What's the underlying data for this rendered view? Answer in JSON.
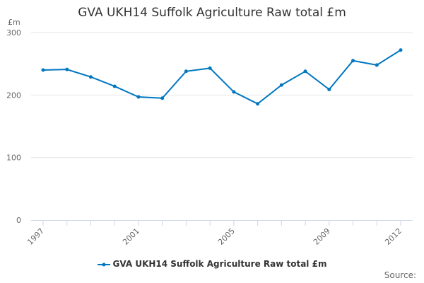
{
  "chart_data": {
    "type": "line",
    "title": "GVA UKH14 Suffolk Agriculture Raw total £m",
    "ylabel": "£m",
    "ylim": [
      0,
      300
    ],
    "yticks": [
      0,
      100,
      200,
      300
    ],
    "xticks": [
      "1997",
      "2001",
      "2005",
      "2009",
      "2012"
    ],
    "x": [
      1997,
      1998,
      1999,
      2000,
      2001,
      2002,
      2003,
      2004,
      2005,
      2006,
      2007,
      2008,
      2009,
      2010,
      2011,
      2012
    ],
    "series": [
      {
        "name": "GVA UKH14 Suffolk Agriculture Raw total £m",
        "color": "#0077c0",
        "values": [
          240,
          241,
          229,
          214,
          197,
          195,
          238,
          243,
          205,
          186,
          216,
          238,
          209,
          255,
          248,
          272
        ]
      }
    ],
    "grid": true,
    "legend_placement": "bottom"
  },
  "source_label": "Source:"
}
